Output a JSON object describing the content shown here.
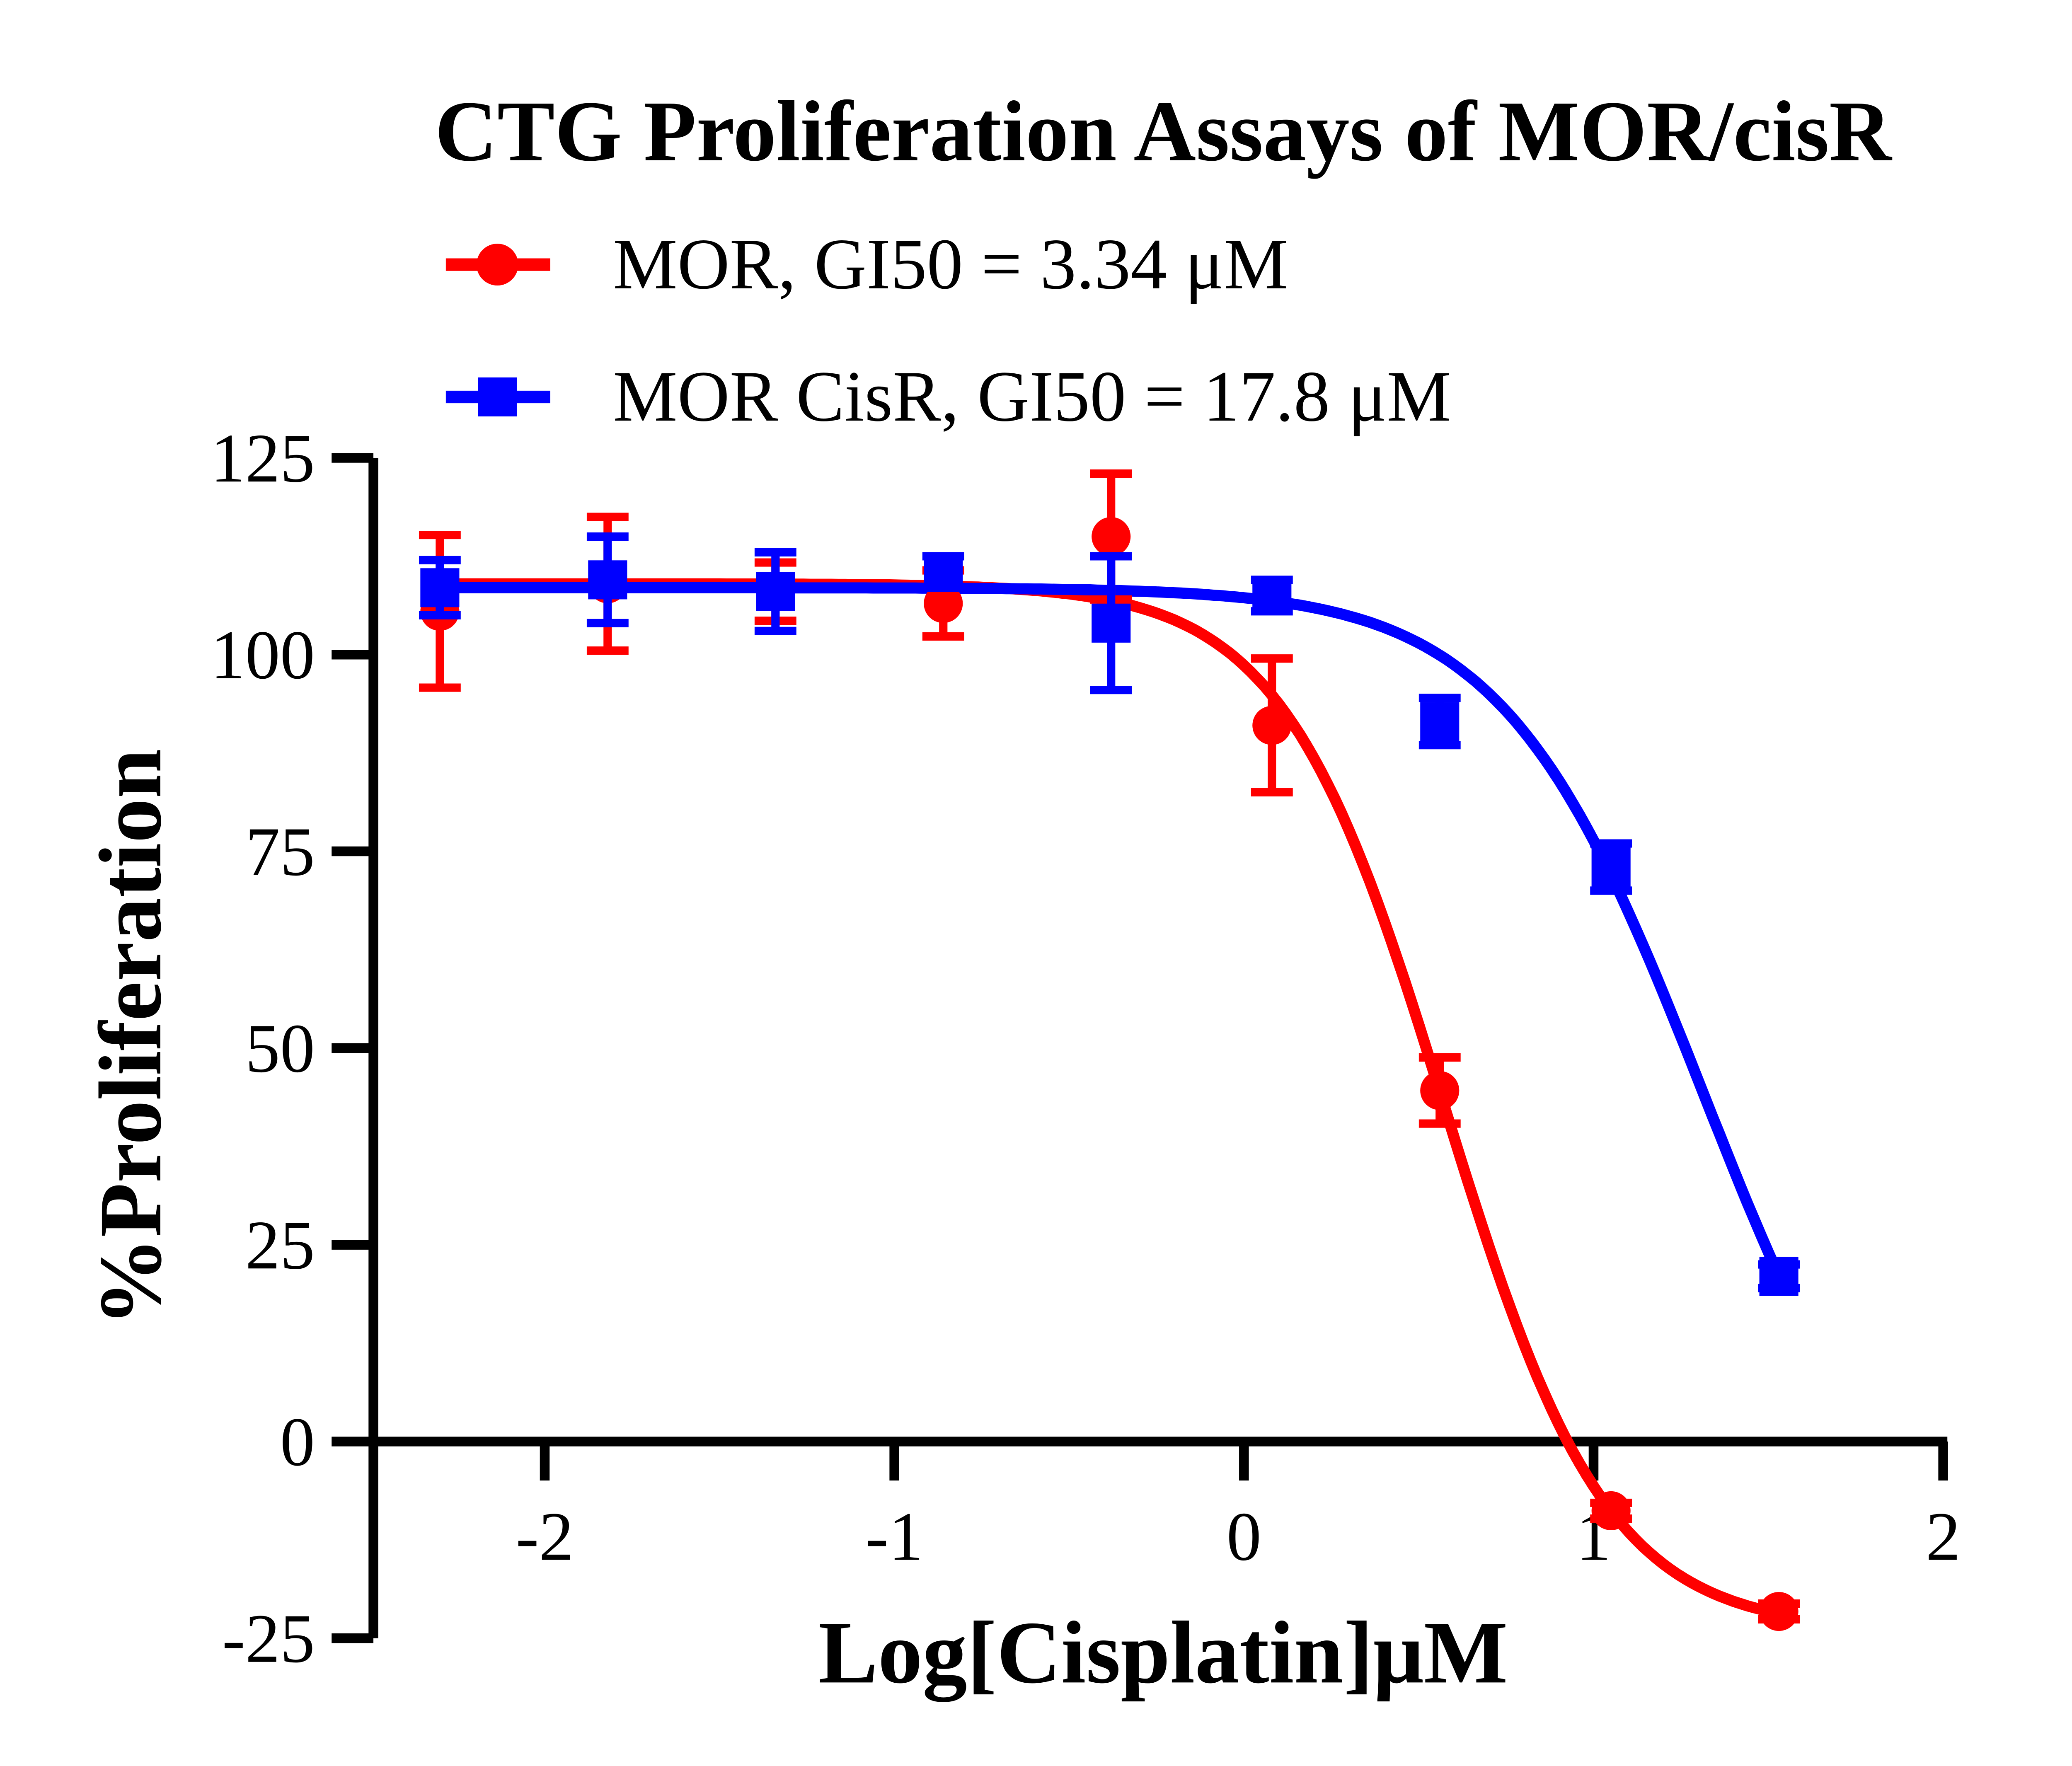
{
  "chart_data": {
    "type": "scatter",
    "title": "CTG Proliferation Assays of MOR/cisR",
    "xlabel": "Log[Cisplatin]μM",
    "ylabel": "%Proliferation",
    "xlim": [
      -2.5,
      2
    ],
    "ylim": [
      -25,
      125
    ],
    "xticks": [
      -2,
      -1,
      0,
      1,
      2
    ],
    "yticks": [
      -25,
      0,
      25,
      50,
      75,
      100,
      125
    ],
    "grid": false,
    "legend_position": "top",
    "series": [
      {
        "name": "MOR, GI50 = 3.34 μM",
        "color": "#ff0000",
        "marker": "circle",
        "x": [
          -2.3,
          -1.82,
          -1.34,
          -0.86,
          -0.38,
          0.08,
          0.56,
          1.05,
          1.53
        ],
        "y": [
          105.5,
          109,
          108,
          106.5,
          115,
          91,
          44.6,
          -8.8,
          -21.6
        ],
        "error": [
          9.7,
          8.5,
          3.7,
          4.2,
          8,
          8.5,
          4.2,
          1,
          1
        ]
      },
      {
        "name": "MOR CisR, GI50 = 17.8 μM",
        "color": "#0000ff",
        "marker": "square",
        "x": [
          -2.3,
          -1.82,
          -1.34,
          -0.86,
          -0.38,
          0.08,
          0.56,
          1.05,
          1.53
        ],
        "y": [
          108.5,
          109.5,
          108,
          110.5,
          104,
          107.5,
          91.5,
          73,
          21
        ],
        "error": [
          3.5,
          5.5,
          5,
          2,
          8.5,
          2,
          3,
          3,
          1.5
        ]
      }
    ]
  }
}
